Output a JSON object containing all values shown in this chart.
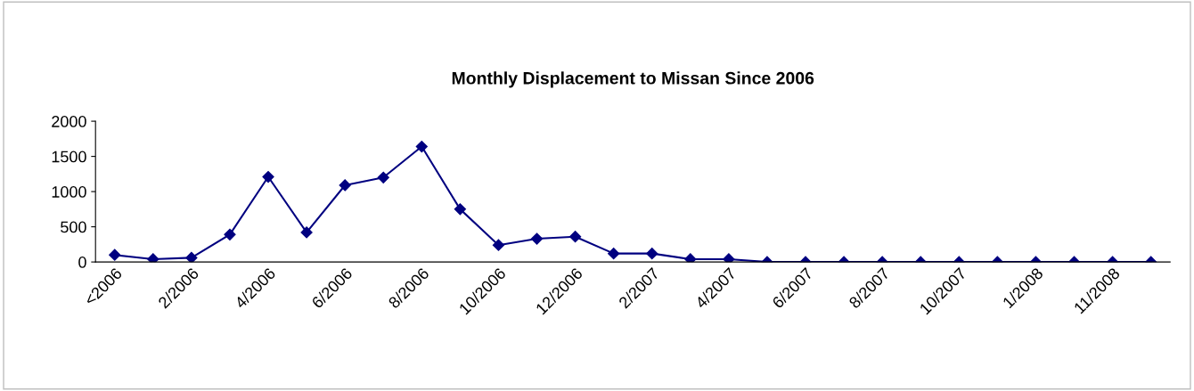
{
  "chart_data": {
    "type": "line",
    "title": "Monthly Displacement to Missan Since 2006",
    "categories": [
      "<2006",
      null,
      "2/2006",
      null,
      "4/2006",
      null,
      "6/2006",
      null,
      "8/2006",
      null,
      "10/2006",
      null,
      "12/2006",
      null,
      "2/2007",
      null,
      "4/2007",
      null,
      "6/2007",
      null,
      "8/2007",
      null,
      "10/2007",
      null,
      "1/2008",
      null,
      "11/2008",
      null
    ],
    "series": [
      {
        "color": "#000080",
        "values": [
          100,
          40,
          60,
          390,
          1210,
          420,
          1090,
          1200,
          1640,
          750,
          240,
          330,
          360,
          120,
          120,
          40,
          40,
          0,
          0,
          0,
          0,
          0,
          0,
          0,
          0,
          0,
          0,
          0
        ]
      }
    ],
    "ylim": [
      0,
      2000
    ],
    "yticks": [
      0,
      500,
      1000,
      1500,
      2000
    ],
    "marker": "diamond",
    "line_style": "solid",
    "grid": false,
    "legend": false
  }
}
